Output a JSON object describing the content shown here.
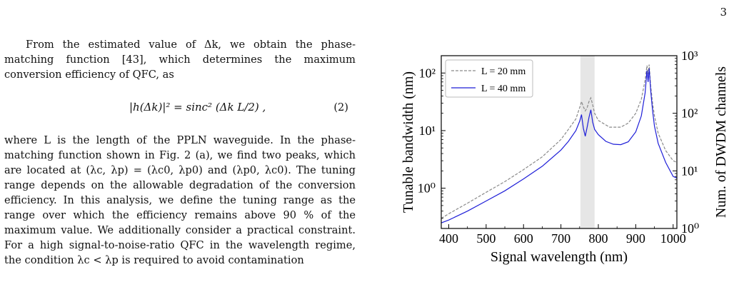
{
  "page_number": "3",
  "text": {
    "para1": "From the estimated value of Δk, we obtain the phase-matching function [43], which determines the maximum conversion efficiency of QFC, as",
    "equation": "|h(Δk)|² = sinc² (Δk L/2) ,",
    "equation_number": "(2)",
    "para2": "where L is the length of the PPLN waveguide. In the phase-matching function shown in Fig. 2 (a), we find two peaks, which are located at (λc, λp) = (λc0, λp0) and (λp0, λc0). The tuning range depends on the allowable degradation of the conversion efficiency. In this analysis, we define the tuning range as the range over which the efficiency remains above 90 % of the maximum value. We additionally consider a practical constraint. For a high signal-to-noise-ratio QFC in the wavelength regime, the condition λc < λp is required to avoid contamination"
  },
  "chart_data": {
    "type": "line",
    "xlabel": "Signal wavelength (nm)",
    "ylabel": "Tunable bandwidth (nm)",
    "ylabel_right": "Num. of DWDM channels",
    "xlim": [
      380,
      1010
    ],
    "ylim": [
      0.2,
      200
    ],
    "ylim_right": [
      1,
      1000
    ],
    "yscale": "log",
    "x_ticks": [
      "400",
      "500",
      "600",
      "700",
      "800",
      "900",
      "1000"
    ],
    "y_ticks_left": [
      "10⁰",
      "10¹",
      "10²"
    ],
    "y_ticks_right": [
      "10⁰",
      "10¹",
      "10²",
      "10³"
    ],
    "shaded_region": [
      752,
      790
    ],
    "shade_color": "#e6e6e6",
    "legend_position": "top-left",
    "series": [
      {
        "name": "L = 20 mm",
        "color": "#8a8a8a",
        "dash": true,
        "x": [
          380,
          400,
          450,
          500,
          550,
          600,
          650,
          700,
          720,
          740,
          750,
          755,
          760,
          765,
          770,
          775,
          780,
          785,
          790,
          800,
          830,
          860,
          880,
          900,
          915,
          925,
          930,
          933,
          936,
          940,
          945,
          950,
          960,
          980,
          1000,
          1010
        ],
        "y": [
          0.3,
          0.36,
          0.55,
          0.85,
          1.3,
          2.1,
          3.5,
          7,
          10.5,
          16,
          25,
          32,
          26,
          22,
          25,
          32,
          37,
          28,
          20,
          15,
          11.5,
          11.5,
          13.5,
          20,
          35,
          75,
          135,
          95,
          140,
          60,
          30,
          18,
          9,
          4.5,
          3,
          2.8
        ]
      },
      {
        "name": "L = 40 mm",
        "color": "#1f1fd8",
        "dash": false,
        "x": [
          380,
          400,
          450,
          500,
          550,
          600,
          650,
          700,
          720,
          740,
          750,
          755,
          760,
          765,
          770,
          775,
          780,
          785,
          790,
          800,
          820,
          840,
          860,
          880,
          900,
          915,
          925,
          930,
          933,
          936,
          940,
          945,
          950,
          960,
          980,
          1000,
          1010
        ],
        "y": [
          0.25,
          0.28,
          0.4,
          0.6,
          0.9,
          1.45,
          2.4,
          4.6,
          6.5,
          10,
          14.5,
          19,
          11,
          8,
          11.5,
          17,
          23,
          14,
          10.5,
          8.5,
          6.5,
          5.8,
          5.7,
          6.4,
          9.5,
          18,
          45,
          110,
          70,
          120,
          50,
          22,
          12,
          6,
          2.8,
          1.6,
          1.5
        ]
      }
    ]
  }
}
